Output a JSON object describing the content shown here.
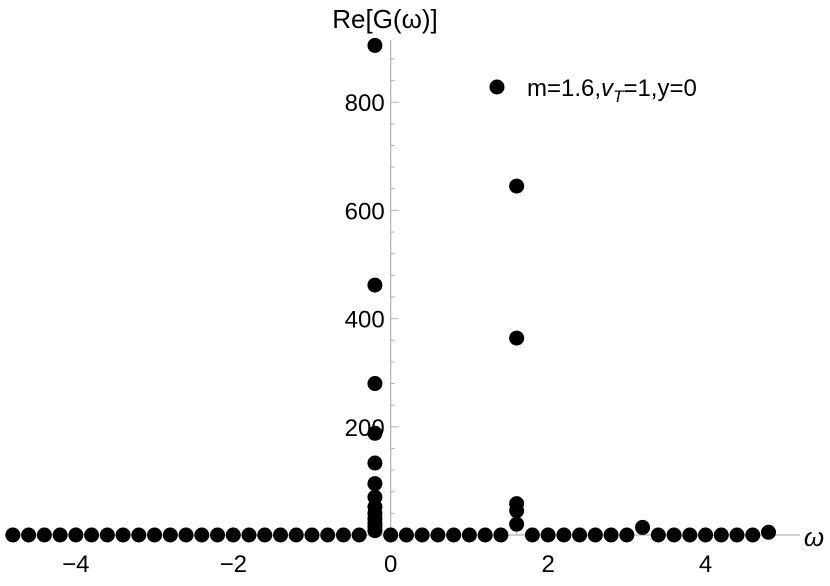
{
  "chart_data": {
    "type": "scatter",
    "title": "",
    "xlabel": "ω",
    "ylabel": "Re[G(ω)]",
    "xlim": [
      -4.9,
      5.2
    ],
    "ylim": [
      0,
      915
    ],
    "x_ticks": [
      {
        "value": -4,
        "label": "−4"
      },
      {
        "value": -2,
        "label": "−2"
      },
      {
        "value": 0,
        "label": "0"
      },
      {
        "value": 2,
        "label": "2"
      },
      {
        "value": 4,
        "label": "4"
      }
    ],
    "y_ticks": [
      {
        "value": 200,
        "label": "200"
      },
      {
        "value": 400,
        "label": "400"
      },
      {
        "value": 600,
        "label": "600"
      },
      {
        "value": 800,
        "label": "800"
      }
    ],
    "legend": {
      "position": "top-right",
      "text_main": "m=1.6,",
      "text_v": "v",
      "text_sub": "T",
      "text_rest": "=1,y=0"
    },
    "series": [
      {
        "name": "m=1.6,vT=1,y=0",
        "color": "#000000",
        "points": [
          {
            "x": -0.2,
            "y": 905
          },
          {
            "x": -0.2,
            "y": 462
          },
          {
            "x": -0.2,
            "y": 280
          },
          {
            "x": -0.2,
            "y": 188
          },
          {
            "x": -0.2,
            "y": 133
          },
          {
            "x": -0.2,
            "y": 95
          },
          {
            "x": -0.2,
            "y": 70
          },
          {
            "x": -0.2,
            "y": 52
          },
          {
            "x": -0.2,
            "y": 40
          },
          {
            "x": -0.2,
            "y": 30
          },
          {
            "x": -0.2,
            "y": 22
          },
          {
            "x": -0.2,
            "y": 15
          },
          {
            "x": -0.2,
            "y": 8
          },
          {
            "x": 1.6,
            "y": 645
          },
          {
            "x": 1.6,
            "y": 364
          },
          {
            "x": 1.6,
            "y": 58
          },
          {
            "x": 1.6,
            "y": 45
          },
          {
            "x": 1.6,
            "y": 20
          },
          {
            "x": 3.2,
            "y": 14
          },
          {
            "x": 4.8,
            "y": 5
          },
          {
            "x": -4.8,
            "y": 0
          },
          {
            "x": -4.6,
            "y": 0
          },
          {
            "x": -4.4,
            "y": 0
          },
          {
            "x": -4.2,
            "y": 0
          },
          {
            "x": -4.0,
            "y": 0
          },
          {
            "x": -3.8,
            "y": 0
          },
          {
            "x": -3.6,
            "y": 0
          },
          {
            "x": -3.4,
            "y": 0
          },
          {
            "x": -3.2,
            "y": 0
          },
          {
            "x": -3.0,
            "y": 0
          },
          {
            "x": -2.8,
            "y": 0
          },
          {
            "x": -2.6,
            "y": 0
          },
          {
            "x": -2.4,
            "y": 0
          },
          {
            "x": -2.2,
            "y": 0
          },
          {
            "x": -2.0,
            "y": 0
          },
          {
            "x": -1.8,
            "y": 0
          },
          {
            "x": -1.6,
            "y": 0
          },
          {
            "x": -1.4,
            "y": 0
          },
          {
            "x": -1.2,
            "y": 0
          },
          {
            "x": -1.0,
            "y": 0
          },
          {
            "x": -0.8,
            "y": 0
          },
          {
            "x": -0.6,
            "y": 0
          },
          {
            "x": -0.4,
            "y": 0
          },
          {
            "x": 0.0,
            "y": 0
          },
          {
            "x": 0.2,
            "y": 0
          },
          {
            "x": 0.4,
            "y": 0
          },
          {
            "x": 0.6,
            "y": 0
          },
          {
            "x": 0.8,
            "y": 0
          },
          {
            "x": 1.0,
            "y": 0
          },
          {
            "x": 1.2,
            "y": 0
          },
          {
            "x": 1.4,
            "y": 0
          },
          {
            "x": 1.8,
            "y": 0
          },
          {
            "x": 2.0,
            "y": 0
          },
          {
            "x": 2.2,
            "y": 0
          },
          {
            "x": 2.4,
            "y": 0
          },
          {
            "x": 2.6,
            "y": 0
          },
          {
            "x": 2.8,
            "y": 0
          },
          {
            "x": 3.0,
            "y": 0
          },
          {
            "x": 3.4,
            "y": 0
          },
          {
            "x": 3.6,
            "y": 0
          },
          {
            "x": 3.8,
            "y": 0
          },
          {
            "x": 4.0,
            "y": 0
          },
          {
            "x": 4.2,
            "y": 0
          },
          {
            "x": 4.4,
            "y": 0
          },
          {
            "x": 4.6,
            "y": 0
          }
        ]
      }
    ]
  }
}
